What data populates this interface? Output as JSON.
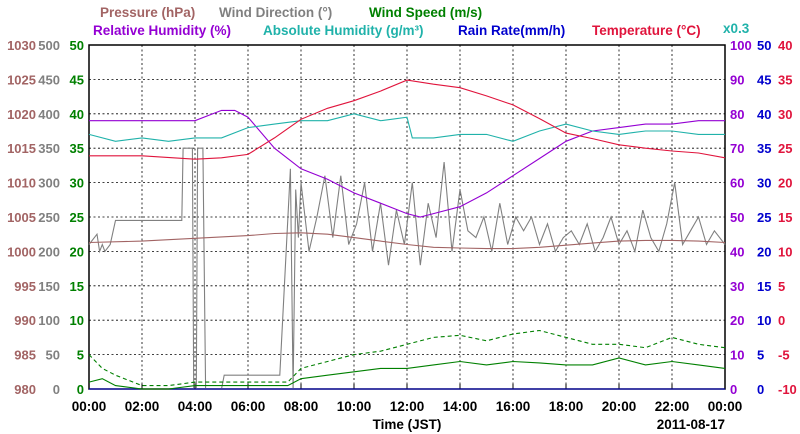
{
  "chart_data": {
    "type": "line",
    "xlabel": "Time (JST)",
    "date": "2011-08-17",
    "x_ticks": [
      "00:00",
      "02:00",
      "04:00",
      "06:00",
      "08:00",
      "10:00",
      "12:00",
      "14:00",
      "16:00",
      "18:00",
      "20:00",
      "22:00",
      "00:00"
    ],
    "legend": {
      "row1": [
        {
          "text": "Pressure (hPa)",
          "color": "#a26464"
        },
        {
          "text": "Wind Direction (°)",
          "color": "#808080"
        },
        {
          "text": "Wind Speed (m/s)",
          "color": "#008000"
        }
      ],
      "row2": [
        {
          "text": "Relative Humidity (%)",
          "color": "#9400d3"
        },
        {
          "text": "Absolute Humidity (g/m³)",
          "color": "#20b2aa"
        },
        {
          "text": "Rain Rate(mm/h)",
          "color": "#0000cd"
        },
        {
          "text": "Temperature (°C)",
          "color": "#e0143c"
        }
      ],
      "scale_note": "x0.3"
    },
    "axes": {
      "pressure": {
        "label": "Pressure (hPa)",
        "range": [
          980,
          1030
        ],
        "ticks": [
          "1030",
          "1025",
          "1020",
          "1015",
          "1010",
          "1005",
          "1000",
          "995",
          "990",
          "985",
          "980"
        ],
        "color": "#a26464"
      },
      "wind_direction": {
        "label": "Wind Direction (°)",
        "range": [
          0,
          500
        ],
        "ticks": [
          "500",
          "450",
          "400",
          "350",
          "300",
          "250",
          "200",
          "150",
          "100",
          "50",
          "0"
        ],
        "color": "#808080"
      },
      "wind_speed": {
        "label": "Wind Speed (m/s)",
        "range": [
          0,
          50
        ],
        "ticks": [
          "50",
          "45",
          "40",
          "35",
          "30",
          "25",
          "20",
          "15",
          "10",
          "5",
          "0"
        ],
        "color": "#008000"
      },
      "relative_humidity": {
        "label": "Relative Humidity (%)",
        "range": [
          0,
          100
        ],
        "ticks": [
          "100",
          "90",
          "80",
          "70",
          "60",
          "50",
          "40",
          "30",
          "20",
          "10",
          "0"
        ],
        "color": "#9400d3"
      },
      "rain_rate": {
        "label": "Rain Rate(mm/h)",
        "range": [
          0,
          50
        ],
        "ticks": [
          "50",
          "45",
          "40",
          "35",
          "30",
          "25",
          "20",
          "15",
          "10",
          "5",
          "0"
        ],
        "color": "#0000cd"
      },
      "temperature": {
        "label": "Temperature (°C)",
        "range": [
          -10,
          40
        ],
        "ticks": [
          "40",
          "35",
          "30",
          "25",
          "20",
          "15",
          "10",
          "5",
          "0",
          "-5",
          "-10"
        ],
        "color": "#e0143c"
      }
    },
    "series": [
      {
        "name": "Temperature (°C)",
        "axis": "temperature",
        "color": "#e0143c",
        "x": [
          0,
          2,
          4,
          5,
          6,
          7,
          8,
          9,
          10,
          11,
          12,
          13,
          14,
          15,
          16,
          17,
          18,
          19,
          20,
          21,
          22,
          23,
          24
        ],
        "y": [
          23.9,
          23.9,
          23.4,
          23.6,
          24.1,
          26.5,
          29.2,
          30.8,
          31.9,
          33.3,
          34.9,
          34.3,
          33.8,
          32.6,
          31.3,
          29.3,
          27.2,
          26.4,
          25.5,
          25.0,
          24.6,
          24.3,
          23.6
        ]
      },
      {
        "name": "Relative Humidity (%)",
        "axis": "relative_humidity",
        "color": "#9400d3",
        "x": [
          0,
          2,
          4,
          5,
          5.5,
          6,
          7,
          8,
          9,
          10,
          11,
          12,
          12.5,
          13,
          14,
          15,
          16,
          17,
          18,
          19,
          20,
          21,
          22,
          23,
          24
        ],
        "y": [
          78,
          78,
          78,
          81,
          81,
          79,
          70,
          64,
          61,
          57,
          54,
          51,
          50,
          51,
          53,
          57,
          62,
          67,
          72,
          75,
          76,
          77,
          77,
          78,
          78
        ]
      },
      {
        "name": "Absolute Humidity (g/m³)",
        "axis": "relative_humidity",
        "color": "#20b2aa",
        "x": [
          0,
          1,
          2,
          3,
          4,
          5,
          6,
          7,
          8,
          9,
          10,
          11,
          12,
          12.2,
          13,
          14,
          15,
          16,
          17,
          18,
          19,
          20,
          21,
          22,
          23,
          24
        ],
        "y": [
          74,
          72,
          73,
          72,
          73,
          73,
          76,
          77,
          78,
          78,
          80,
          78,
          79,
          73,
          73,
          74,
          74,
          72,
          75,
          77,
          75,
          74,
          75,
          75,
          74,
          74
        ]
      },
      {
        "name": "Pressure (hPa)",
        "axis": "pressure",
        "color": "#a26464",
        "x": [
          0,
          2,
          4,
          6,
          7,
          8,
          9,
          10,
          11,
          12,
          13,
          14,
          15,
          16,
          17,
          18,
          19,
          20,
          21,
          22,
          23,
          24
        ],
        "y": [
          1001.3,
          1001.5,
          1001.9,
          1002.3,
          1002.6,
          1002.7,
          1002.5,
          1002.0,
          1001.5,
          1001.0,
          1000.6,
          1000.5,
          1000.4,
          1000.4,
          1000.6,
          1000.9,
          1001.2,
          1001.5,
          1001.6,
          1001.6,
          1001.5,
          1001.3
        ]
      },
      {
        "name": "Wind Direction (°)",
        "axis": "wind_direction",
        "color": "#808080",
        "x": [
          0,
          0.3,
          0.4,
          0.5,
          0.6,
          0.8,
          1.0,
          1.1,
          3.5,
          3.55,
          3.9,
          3.95,
          4.05,
          4.1,
          4.3,
          4.4,
          4.6,
          5.0,
          5.1,
          5.5,
          6.0,
          7.2,
          7.6,
          7.7,
          7.8,
          7.9,
          8.0,
          8.3,
          8.6,
          8.9,
          9.2,
          9.5,
          9.8,
          10.1,
          10.4,
          10.7,
          11.0,
          11.3,
          11.6,
          11.9,
          12.2,
          12.5,
          12.8,
          13.1,
          13.4,
          13.7,
          14.0,
          14.3,
          14.6,
          14.9,
          15.2,
          15.5,
          15.8,
          16.1,
          16.4,
          16.7,
          17.0,
          17.3,
          17.6,
          17.9,
          18.2,
          18.5,
          18.8,
          19.1,
          19.4,
          19.7,
          20.0,
          20.3,
          20.6,
          20.9,
          21.2,
          21.5,
          21.8,
          22.1,
          22.4,
          22.7,
          23.0,
          23.3,
          23.6,
          24
        ],
        "y": [
          210,
          225,
          200,
          210,
          200,
          210,
          245,
          245,
          245,
          350,
          350,
          0,
          0,
          350,
          350,
          0,
          0,
          0,
          20,
          20,
          20,
          20,
          320,
          0,
          290,
          220,
          300,
          200,
          250,
          310,
          220,
          310,
          210,
          240,
          300,
          200,
          270,
          180,
          260,
          210,
          300,
          180,
          270,
          220,
          330,
          200,
          290,
          230,
          220,
          250,
          200,
          270,
          210,
          250,
          230,
          250,
          210,
          240,
          200,
          220,
          230,
          210,
          240,
          200,
          220,
          250,
          210,
          230,
          200,
          260,
          220,
          200,
          240,
          300,
          210,
          230,
          250,
          210,
          230,
          210
        ]
      },
      {
        "name": "Wind Speed (m/s)",
        "axis": "wind_speed",
        "color": "#008000",
        "style": "solid",
        "x": [
          0,
          0.5,
          1,
          2,
          3,
          4,
          5,
          6,
          7,
          7.5,
          8,
          9,
          10,
          11,
          12,
          13,
          14,
          15,
          16,
          17,
          18,
          19,
          20,
          21,
          22,
          23,
          24
        ],
        "y": [
          1,
          1.5,
          0.5,
          0,
          0,
          0.5,
          0.5,
          0.5,
          0.5,
          0.5,
          1.5,
          2,
          2.5,
          3,
          3,
          3.5,
          4,
          3.5,
          4,
          3.8,
          3.5,
          3.5,
          4.5,
          3.5,
          4,
          3.5,
          3
        ]
      },
      {
        "name": "Wind Speed (m/s) gust",
        "axis": "wind_speed",
        "color": "#008000",
        "style": "dashed",
        "x": [
          0,
          0.5,
          1,
          2,
          3,
          4,
          5,
          6,
          7,
          7.5,
          8,
          9,
          10,
          11,
          12,
          13,
          14,
          15,
          16,
          17,
          18,
          19,
          20,
          21,
          22,
          23,
          24
        ],
        "y": [
          5,
          3,
          2,
          0.5,
          0.5,
          1,
          1,
          1,
          1,
          1,
          3,
          4,
          5,
          5.5,
          6.5,
          7.5,
          7.8,
          7,
          8,
          8.5,
          7.5,
          6.5,
          6.5,
          6,
          7.5,
          6.5,
          6
        ]
      },
      {
        "name": "Rain Rate(mm/h)",
        "axis": "rain_rate",
        "color": "#0000cd",
        "x": [
          0,
          24
        ],
        "y": [
          0,
          0
        ]
      }
    ]
  }
}
